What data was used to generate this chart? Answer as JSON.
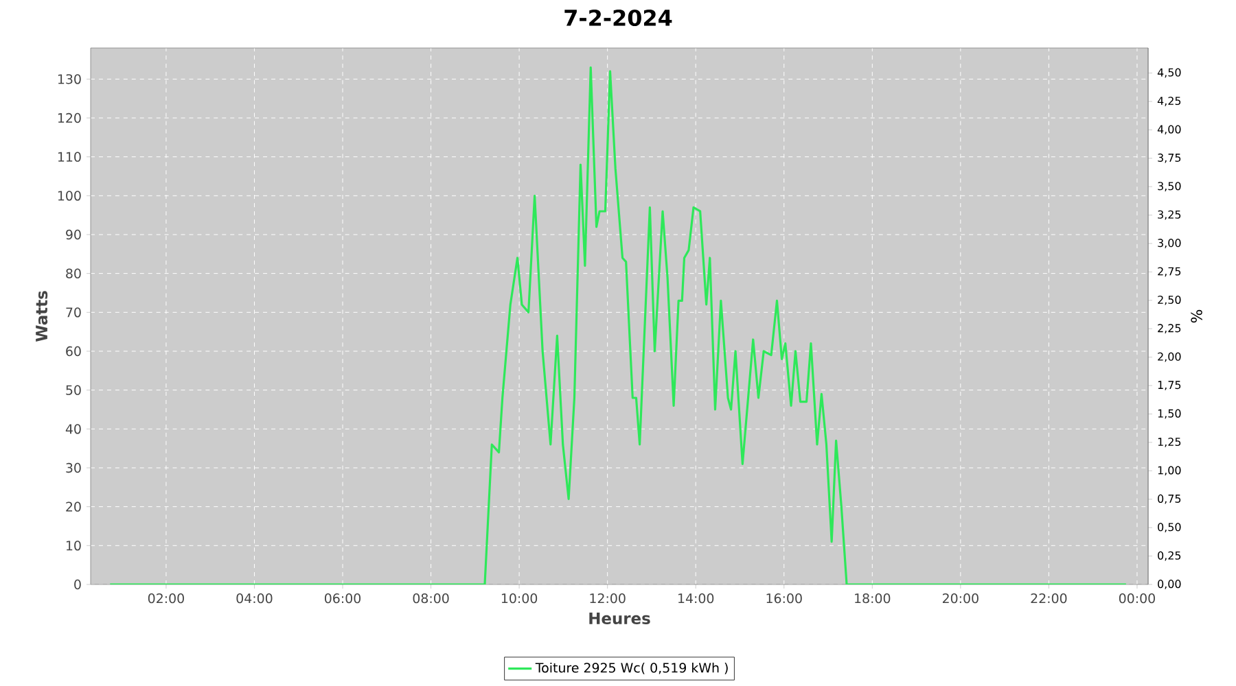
{
  "chart_data": {
    "type": "line",
    "title": "7-2-2024",
    "xlabel": "Heures",
    "ylabel": "Watts",
    "y2label": "%",
    "xlim": [
      0.29,
      24.25
    ],
    "ylim": [
      0,
      138
    ],
    "y2lim": [
      0,
      4.72
    ],
    "xticks": [
      {
        "value": 2,
        "label": "02:00"
      },
      {
        "value": 4,
        "label": "04:00"
      },
      {
        "value": 6,
        "label": "06:00"
      },
      {
        "value": 8,
        "label": "08:00"
      },
      {
        "value": 10,
        "label": "10:00"
      },
      {
        "value": 12,
        "label": "12:00"
      },
      {
        "value": 14,
        "label": "14:00"
      },
      {
        "value": 16,
        "label": "16:00"
      },
      {
        "value": 18,
        "label": "18:00"
      },
      {
        "value": 20,
        "label": "20:00"
      },
      {
        "value": 22,
        "label": "22:00"
      },
      {
        "value": 24,
        "label": "00:00"
      }
    ],
    "yticks": [
      0,
      10,
      20,
      30,
      40,
      50,
      60,
      70,
      80,
      90,
      100,
      110,
      120,
      130
    ],
    "y2ticks": [
      {
        "value": 0,
        "label": "0,00"
      },
      {
        "value": 0.25,
        "label": "0,25"
      },
      {
        "value": 0.5,
        "label": "0,50"
      },
      {
        "value": 0.75,
        "label": "0,75"
      },
      {
        "value": 1,
        "label": "1,00"
      },
      {
        "value": 1.25,
        "label": "1,25"
      },
      {
        "value": 1.5,
        "label": "1,50"
      },
      {
        "value": 1.75,
        "label": "1,75"
      },
      {
        "value": 2,
        "label": "2,00"
      },
      {
        "value": 2.25,
        "label": "2,25"
      },
      {
        "value": 2.5,
        "label": "2,50"
      },
      {
        "value": 2.75,
        "label": "2,75"
      },
      {
        "value": 3,
        "label": "3,00"
      },
      {
        "value": 3.25,
        "label": "3,25"
      },
      {
        "value": 3.5,
        "label": "3,50"
      },
      {
        "value": 3.75,
        "label": "3,75"
      },
      {
        "value": 4,
        "label": "4,00"
      },
      {
        "value": 4.25,
        "label": "4,25"
      },
      {
        "value": 4.5,
        "label": "4,50"
      }
    ],
    "grid": true,
    "legend": "bottom",
    "marker": "none",
    "series": [
      {
        "name": "Toiture 2925 Wc( 0,519 kWh )",
        "color": "#2ee85a",
        "x": [
          0.73,
          3.0,
          6.0,
          9.22,
          9.38,
          9.54,
          9.62,
          9.8,
          9.96,
          10.06,
          10.21,
          10.35,
          10.53,
          10.71,
          10.86,
          10.99,
          11.12,
          11.25,
          11.39,
          11.49,
          11.62,
          11.75,
          11.82,
          11.95,
          12.06,
          12.18,
          12.34,
          12.42,
          12.57,
          12.65,
          12.73,
          12.96,
          13.07,
          13.25,
          13.36,
          13.5,
          13.61,
          13.69,
          13.74,
          13.84,
          13.95,
          14.1,
          14.24,
          14.32,
          14.44,
          14.57,
          14.73,
          14.8,
          14.9,
          15.06,
          15.3,
          15.42,
          15.54,
          15.71,
          15.84,
          15.95,
          16.03,
          16.16,
          16.26,
          16.37,
          16.51,
          16.61,
          16.75,
          16.85,
          16.96,
          17.08,
          17.18,
          17.3,
          17.42,
          20.0,
          23.75
        ],
        "values": [
          0,
          0,
          0,
          0,
          36,
          34,
          48,
          72,
          84,
          72,
          70,
          100,
          60,
          36,
          64,
          36,
          22,
          48,
          108,
          82,
          133,
          92,
          96,
          96,
          132,
          107,
          84,
          83,
          48,
          48,
          36,
          97,
          60,
          96,
          79,
          46,
          73,
          73,
          84,
          86,
          97,
          96,
          72,
          84,
          45,
          73,
          48,
          45,
          60,
          31,
          63,
          48,
          60,
          59,
          73,
          58,
          62,
          46,
          60,
          47,
          47,
          62,
          36,
          49,
          36,
          11,
          37,
          20,
          0,
          0,
          0
        ]
      }
    ]
  }
}
